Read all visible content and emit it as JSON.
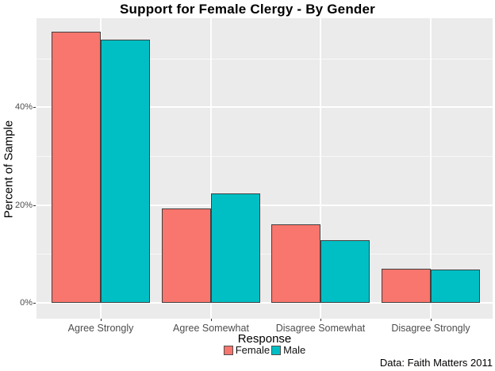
{
  "chart_data": {
    "type": "bar",
    "title": "Support for Female Clergy - By Gender",
    "xlabel": "Response",
    "ylabel": "Percent of Sample",
    "caption": "Data: Faith Matters 2011",
    "categories": [
      "Agree Strongly",
      "Agree Somewhat",
      "Disagree Somewhat",
      "Disagree Strongly"
    ],
    "series": [
      {
        "name": "Female",
        "color": "#F8766D",
        "values": [
          55.4,
          19.3,
          16.0,
          6.9
        ]
      },
      {
        "name": "Male",
        "color": "#00BFC4",
        "values": [
          53.9,
          22.4,
          12.8,
          6.8
        ]
      }
    ],
    "ylim": [
      0,
      58.2
    ],
    "y_ticks": [
      {
        "value": 0,
        "label": "0%"
      },
      {
        "value": 20,
        "label": "20%"
      },
      {
        "value": 40,
        "label": "40%"
      }
    ],
    "y_minor_ticks": [
      10,
      30,
      50
    ],
    "legend_position": "bottom",
    "grid": "major-and-minor-horizontal, major-vertical-at-categories",
    "panel_background": "#EBEBEB",
    "grid_color": "#FFFFFF",
    "bar_border_color": "#404040",
    "tick_label_color": "#4D4D4D"
  }
}
